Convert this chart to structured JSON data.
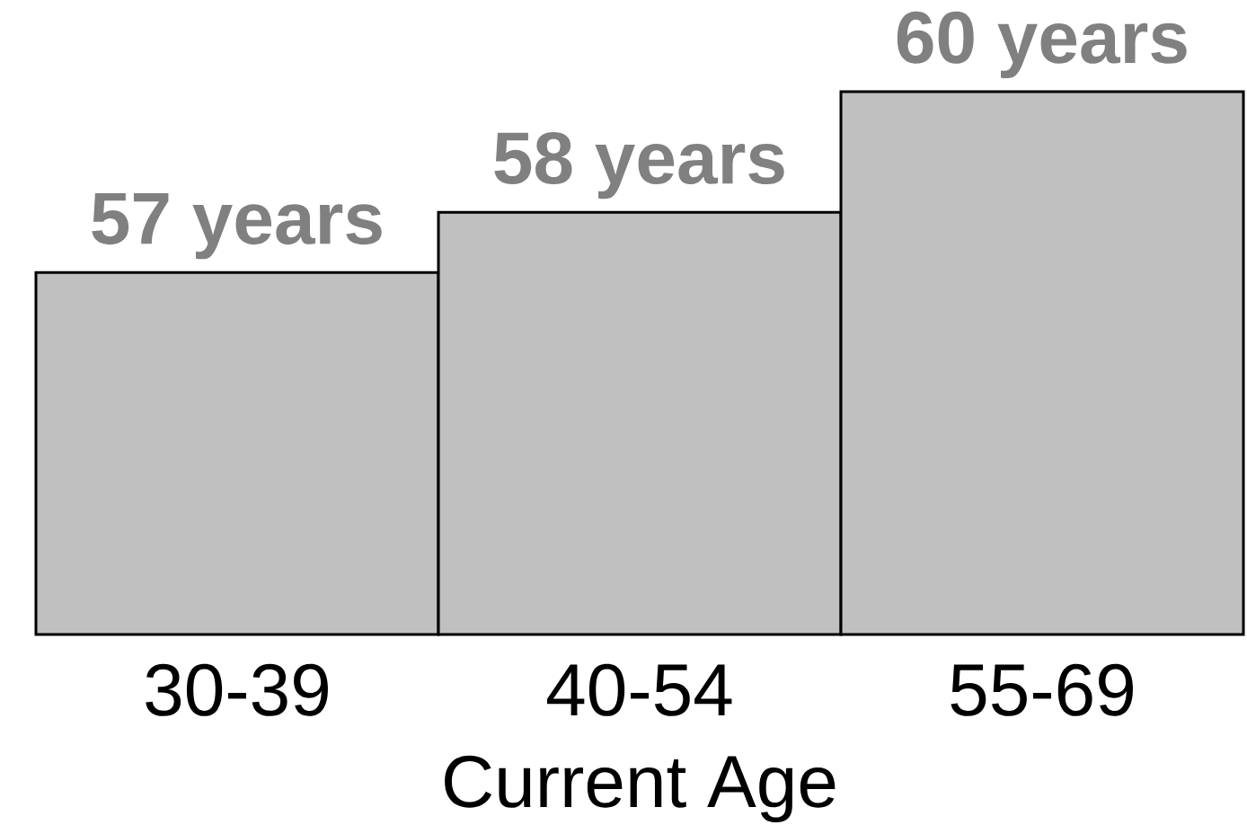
{
  "chart_data": {
    "type": "bar",
    "xlabel": "Current Age",
    "categories": [
      "30-39",
      "40-54",
      "55-69"
    ],
    "values": [
      57,
      58,
      60
    ],
    "value_labels": [
      "57 years",
      "58 years",
      "60 years"
    ],
    "color": "#c0c0c0",
    "ylim": [
      51,
      60
    ],
    "tick_labels": "x"
  }
}
